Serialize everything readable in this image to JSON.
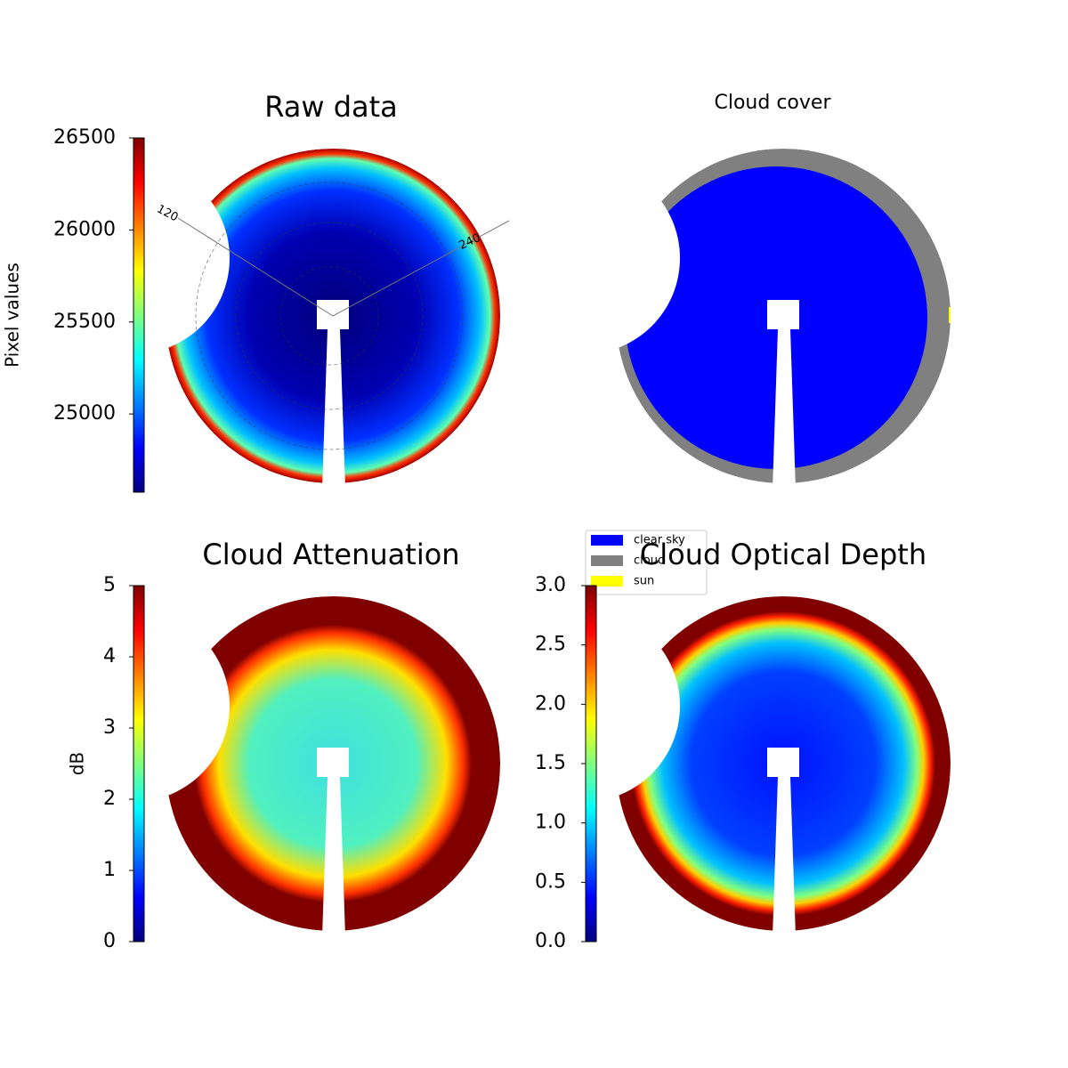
{
  "chart_data": [
    {
      "type": "image",
      "title": "Raw data",
      "ylabel": "Pixel values",
      "colormap": "jet",
      "ylim": [
        24575,
        26500
      ],
      "yticks": [
        25000,
        25500,
        26000,
        26500
      ],
      "annotations": [
        "120",
        "240"
      ]
    },
    {
      "type": "image",
      "title": "Cloud cover",
      "series": [
        {
          "name": "clear sky",
          "color": "#0000ff"
        },
        {
          "name": "cloud",
          "color": "#808080"
        },
        {
          "name": "sun",
          "color": "#ffff00"
        }
      ]
    },
    {
      "type": "image",
      "title": "Cloud Attenuation",
      "ylabel": "dB",
      "colormap": "jet",
      "ylim": [
        0,
        5
      ],
      "yticks": [
        0,
        1,
        2,
        3,
        4,
        5
      ]
    },
    {
      "type": "image",
      "title": "Cloud Optical Depth",
      "colormap": "jet",
      "ylim": [
        0,
        3
      ],
      "yticks": [
        {
          "value": 0,
          "label": "0.0"
        },
        0.5,
        {
          "value": 1,
          "label": "1.0"
        },
        1.5,
        {
          "value": 2,
          "label": "2.0"
        },
        2.5,
        {
          "value": 3,
          "label": "3.0"
        }
      ]
    }
  ]
}
